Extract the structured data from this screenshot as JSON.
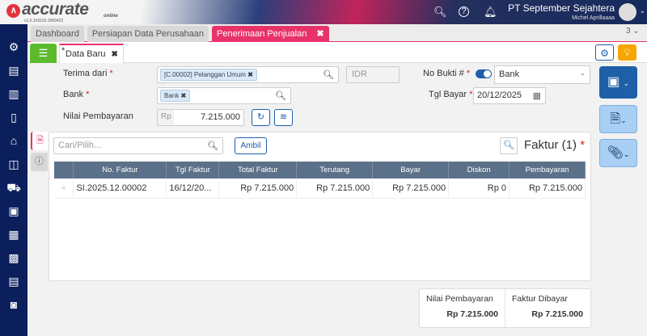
{
  "header": {
    "logo_text": "accurate",
    "logo_sub": "online",
    "version": "v1.0.1#3115-2069422",
    "company": "PT September Sejahtera",
    "user": "Michel Aprillaaaa",
    "icons": [
      "search-icon",
      "help-icon",
      "bell-icon",
      "avatar-icon"
    ]
  },
  "tabs": [
    {
      "label": "Dashboard"
    },
    {
      "label": "Persiapan Data Perusahaan"
    },
    {
      "label": "Penerimaan Penjualan",
      "active": true
    }
  ],
  "tab_count": "3 ⌄",
  "subtab": {
    "label": "Data Baru",
    "modified_mark": "*"
  },
  "form": {
    "terima_dari_label": "Terima dari",
    "terima_dari_value": "[C.00002] Pelanggan Umum",
    "currency": "IDR",
    "no_bukti_label": "No Bukti #",
    "no_bukti_value": "Bank",
    "no_bukti_toggle": true,
    "bank_label": "Bank",
    "bank_value": "Bank",
    "tgl_bayar_label": "Tgl Bayar",
    "tgl_bayar_value": "20/12/2025",
    "nilai_label": "Nilai Pembayaran",
    "nilai_prefix": "Rp",
    "nilai_value": "7.215.000"
  },
  "faktur": {
    "search_placeholder": "Cari/Pilih...",
    "ambil_label": "Ambil",
    "title": "Faktur (1)",
    "columns": [
      "No. Faktur",
      "Tgl Faktur",
      "Total Faktur",
      "Terutang",
      "Bayar",
      "Diskon",
      "Pembayaran"
    ],
    "rows": [
      [
        "SI.2025.12.00002",
        "16/12/20...",
        "Rp 7.215.000",
        "Rp 7.215.000",
        "Rp 7.215.000",
        "Rp 0",
        "Rp 7.215.000"
      ]
    ]
  },
  "summary": {
    "nilai_label": "Nilai Pembayaran",
    "nilai_value": "Rp 7.215.000",
    "faktur_label": "Faktur Dibayar",
    "faktur_value": "Rp 7.215.000"
  },
  "colors": {
    "accent": "#e8336a",
    "sidebar": "#0b1f5c",
    "table_header": "#5b7189",
    "save": "#1e5fa8"
  }
}
